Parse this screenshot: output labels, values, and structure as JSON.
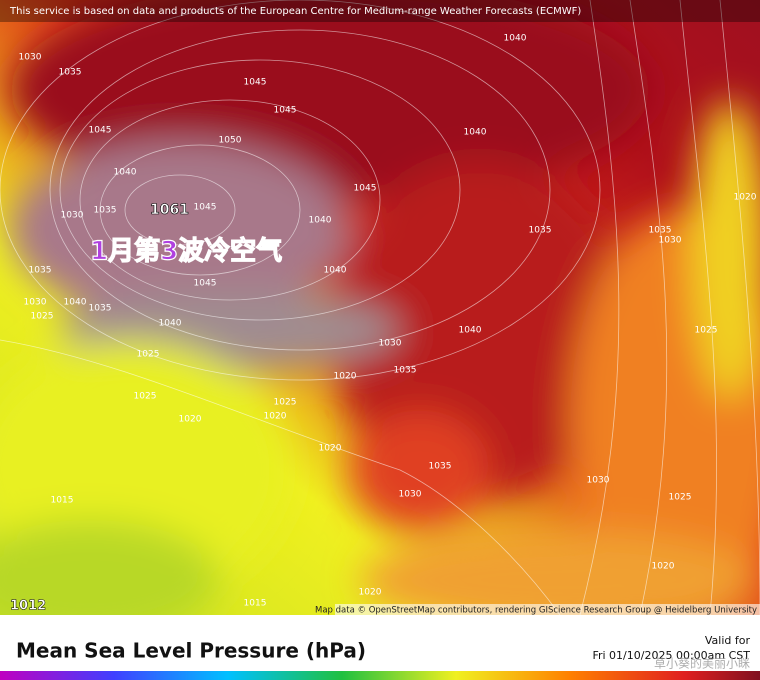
{
  "header": {
    "notice": "This service is based on data and products of the European Centre for Medium-range Weather Forecasts (ECMWF)"
  },
  "map": {
    "annotation": "1月第3波冷空气",
    "high_center": "1061",
    "low_center": "1012",
    "isobar_labels": [
      "1030",
      "1035",
      "1045",
      "1040",
      "1050",
      "1045",
      "1045",
      "1035",
      "1030",
      "1045",
      "1045",
      "1035",
      "1030",
      "1040",
      "1025",
      "1035",
      "1040",
      "1025",
      "1025",
      "1020",
      "1025",
      "1020",
      "1020",
      "1030",
      "1035",
      "1040",
      "1040",
      "1045",
      "1040",
      "1040",
      "1035",
      "1035",
      "1030",
      "1020",
      "1025",
      "1025",
      "1020",
      "1030",
      "1035",
      "1030",
      "1020",
      "1015",
      "1015",
      "1020",
      "1040"
    ],
    "attribution": "Map data © OpenStreetMap contributors, rendering GIScience Research Group @ Heidelberg University"
  },
  "footer": {
    "title": "Mean Sea Level Pressure (hPa)",
    "valid_label": "Valid for",
    "valid_time": "Fri 01/10/2025 00:00am CST",
    "watermark": "草小葵的美丽小眯"
  }
}
